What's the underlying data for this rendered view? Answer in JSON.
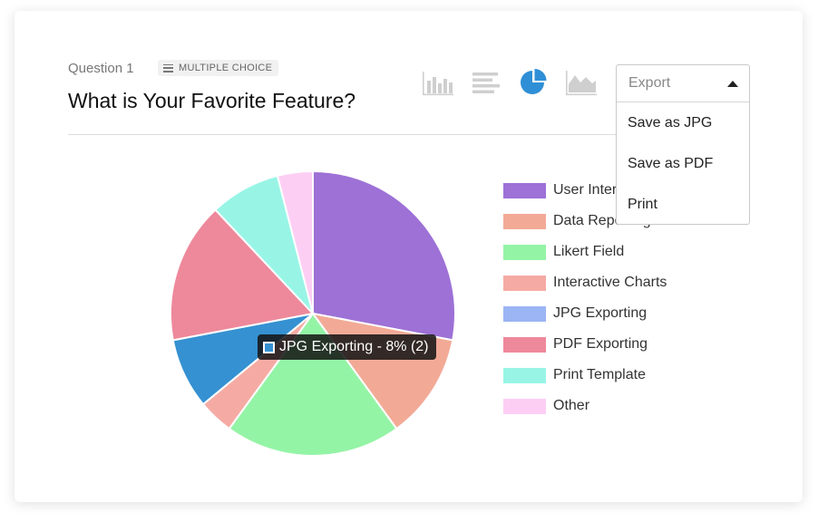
{
  "question": {
    "label": "Question 1",
    "type_badge": "MULTIPLE CHOICE",
    "title": "What is Your Favorite Feature?"
  },
  "chart_types": [
    {
      "name": "bar-chart-icon",
      "active": false
    },
    {
      "name": "horizontal-bar-chart-icon",
      "active": false
    },
    {
      "name": "pie-chart-icon",
      "active": true
    },
    {
      "name": "area-chart-icon",
      "active": false
    }
  ],
  "export_menu": {
    "label": "Export",
    "options": [
      "Save as JPG",
      "Save as PDF",
      "Print"
    ]
  },
  "tooltip": {
    "text": "JPG Exporting - 8% (2)",
    "color": "#3591d1"
  },
  "chart_data": {
    "type": "pie",
    "series": [
      {
        "label": "User Interface",
        "value": 7,
        "color": "#9d71d6"
      },
      {
        "label": "Data Reporting",
        "value": 3,
        "color": "#f2aa96"
      },
      {
        "label": "Likert Field",
        "value": 5,
        "color": "#94f4a6"
      },
      {
        "label": "Interactive Charts",
        "value": 1,
        "color": "#f5aba4"
      },
      {
        "label": "JPG Exporting",
        "value": 2,
        "color": "#3591d1",
        "legend_color": "#9bb4f4"
      },
      {
        "label": "PDF Exporting",
        "value": 4,
        "color": "#ee889b"
      },
      {
        "label": "Print Template",
        "value": 2,
        "color": "#98f5e6"
      },
      {
        "label": "Other",
        "value": 1,
        "color": "#fdcef4"
      }
    ]
  }
}
